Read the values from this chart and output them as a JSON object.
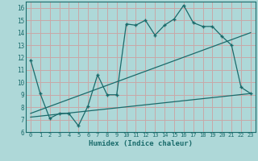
{
  "title": "",
  "xlabel": "Humidex (Indice chaleur)",
  "bg_color": "#aed8d8",
  "grid_color": "#c8a8a8",
  "line_color": "#1a6b6b",
  "xlim": [
    -0.5,
    23.5
  ],
  "ylim": [
    6,
    16.5
  ],
  "xticks": [
    0,
    1,
    2,
    3,
    4,
    5,
    6,
    7,
    8,
    9,
    10,
    11,
    12,
    13,
    14,
    15,
    16,
    17,
    18,
    19,
    20,
    21,
    22,
    23
  ],
  "yticks": [
    6,
    7,
    8,
    9,
    10,
    11,
    12,
    13,
    14,
    15,
    16
  ],
  "line1_x": [
    0,
    1,
    2,
    3,
    4,
    5,
    6,
    7,
    8,
    9,
    10,
    11,
    12,
    13,
    14,
    15,
    16,
    17,
    18,
    19,
    20,
    21,
    22,
    23
  ],
  "line1_y": [
    11.8,
    9.1,
    7.1,
    7.5,
    7.5,
    6.5,
    8.1,
    10.6,
    9.0,
    9.0,
    14.7,
    14.6,
    15.0,
    13.8,
    14.6,
    15.1,
    16.2,
    14.8,
    14.5,
    14.5,
    13.7,
    13.0,
    9.6,
    9.1
  ],
  "line2_x": [
    0,
    23
  ],
  "line2_y": [
    7.5,
    14.0
  ],
  "line3_x": [
    0,
    23
  ],
  "line3_y": [
    7.2,
    9.1
  ]
}
